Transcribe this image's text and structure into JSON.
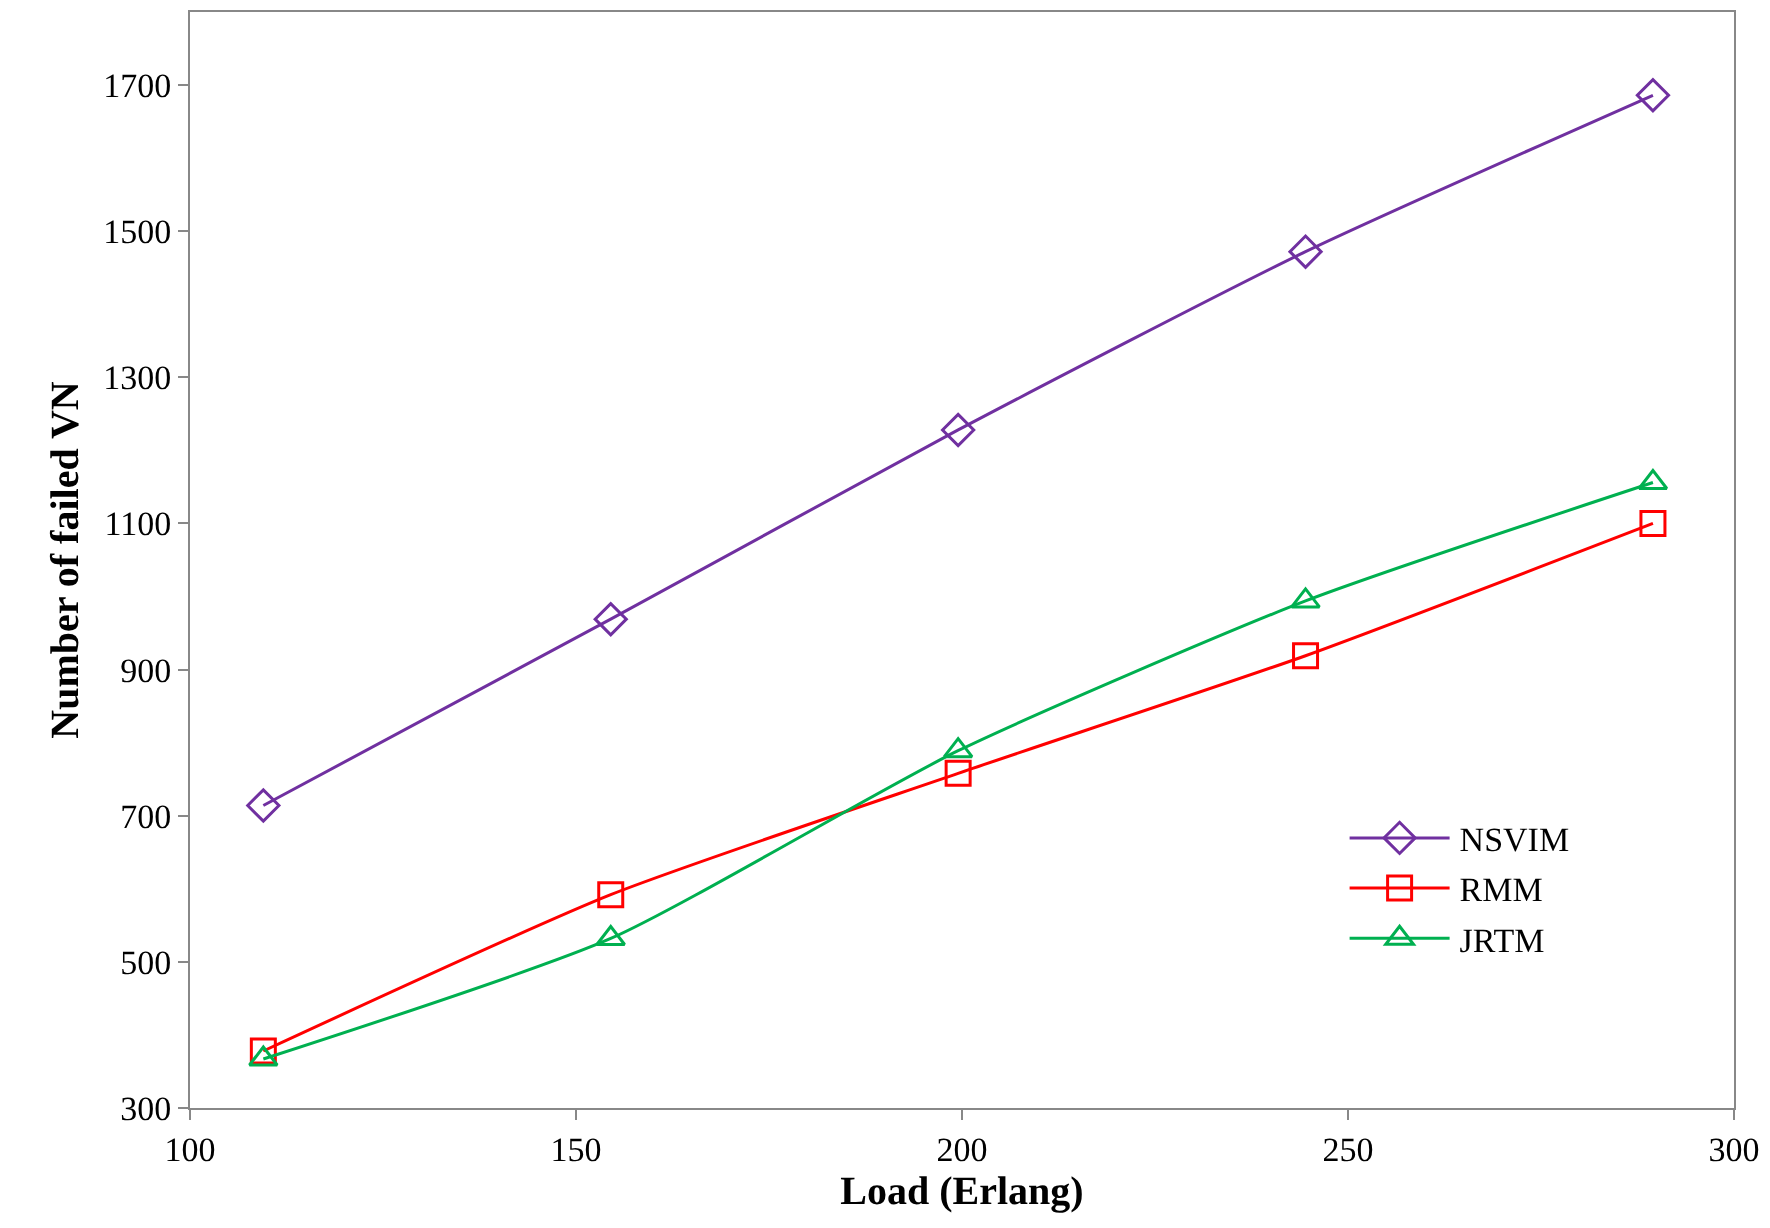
{
  "chart_data": {
    "type": "line",
    "xlabel": "Load (Erlang)",
    "ylabel": "Number of failed VN",
    "x": [
      109.5,
      154.5,
      199.5,
      244.5,
      289.5
    ],
    "series": [
      {
        "name": "NSVIM",
        "color": "#7030a0",
        "marker": "diamond",
        "values": [
          714,
          969,
          1228,
          1472,
          1686
        ]
      },
      {
        "name": "RMM",
        "color": "#ff0000",
        "marker": "square",
        "values": [
          378,
          592,
          758,
          919,
          1100
        ]
      },
      {
        "name": "JRTM",
        "color": "#00b050",
        "marker": "triangle",
        "values": [
          367,
          532,
          789,
          994,
          1156
        ]
      }
    ],
    "xlim": [
      100,
      300
    ],
    "xticks": [
      100,
      150,
      200,
      250,
      300
    ],
    "ylim": [
      300,
      1800
    ],
    "yticks": [
      300,
      500,
      700,
      900,
      1100,
      1300,
      1500,
      1700
    ],
    "legend": "right",
    "line_style": "solid"
  }
}
